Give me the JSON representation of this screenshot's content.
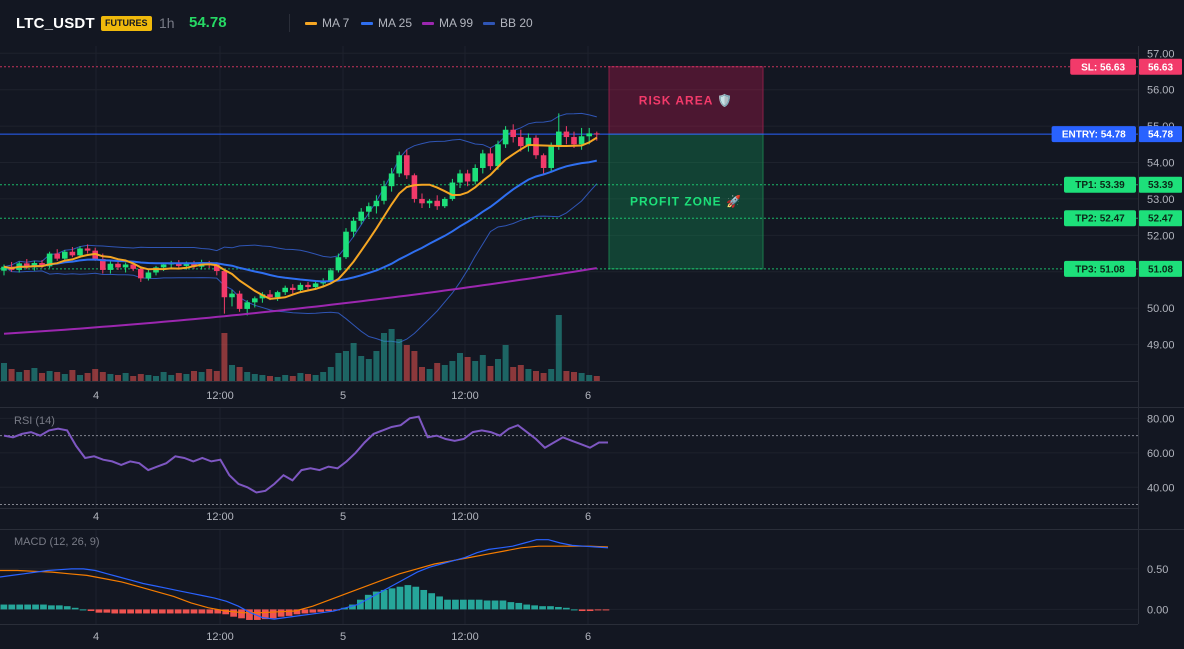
{
  "header": {
    "symbol": "LTC_USDT",
    "badge": "FUTURES",
    "timeframe": "1h",
    "last_price": "54.78"
  },
  "legend": [
    {
      "name": "MA 7",
      "color": "#f5a623"
    },
    {
      "name": "MA 25",
      "color": "#2f6ff0"
    },
    {
      "name": "MA 99",
      "color": "#9c27b0"
    },
    {
      "name": "BB 20",
      "color": "#2f55b5"
    }
  ],
  "zones": {
    "risk_label": "RISK AREA 🛡️",
    "profit_label": "PROFIT ZONE 🚀"
  },
  "levels": [
    {
      "key": "sl",
      "label": "SL: 56.63",
      "axis": "56.63",
      "value": 56.63,
      "color": "#f23a6a",
      "text_color": "#ffffff"
    },
    {
      "key": "entry",
      "label": "ENTRY: 54.78",
      "axis": "54.78",
      "value": 54.78,
      "color": "#2962ff",
      "text_color": "#ffffff"
    },
    {
      "key": "tp1",
      "label": "TP1: 53.39",
      "axis": "53.39",
      "value": 53.39,
      "color": "#1de07a",
      "text_color": "#0b2818"
    },
    {
      "key": "tp2",
      "label": "TP2: 52.47",
      "axis": "52.47",
      "value": 52.47,
      "color": "#1de07a",
      "text_color": "#0b2818"
    },
    {
      "key": "tp3",
      "label": "TP3: 51.08",
      "axis": "51.08",
      "value": 51.08,
      "color": "#1de07a",
      "text_color": "#0b2818"
    }
  ],
  "x_labels": [
    "4",
    "12:00",
    "5",
    "12:00",
    "6"
  ],
  "chart_data": [
    {
      "type": "candlestick",
      "title": "LTC_USDT 1h",
      "ylim": [
        48.0,
        57.2
      ],
      "yticks": [
        57.0,
        56.0,
        55.0,
        54.0,
        53.0,
        52.0,
        51.0,
        50.0,
        49.0
      ],
      "ytick_labels": [
        "57.00",
        "56.00",
        "55.00",
        "54.00",
        "53.00",
        "52.00",
        "51.00",
        "50.00",
        "49.00"
      ],
      "candles": [
        [
          51.03,
          51.2,
          50.9,
          51.14
        ],
        [
          51.14,
          51.27,
          51.0,
          51.05
        ],
        [
          51.05,
          51.28,
          50.98,
          51.23
        ],
        [
          51.23,
          51.35,
          51.07,
          51.12
        ],
        [
          51.12,
          51.3,
          51.03,
          51.24
        ],
        [
          51.24,
          51.32,
          51.1,
          51.15
        ],
        [
          51.15,
          51.55,
          51.1,
          51.5
        ],
        [
          51.5,
          51.62,
          51.3,
          51.36
        ],
        [
          51.36,
          51.6,
          51.28,
          51.55
        ],
        [
          51.55,
          51.68,
          51.4,
          51.45
        ],
        [
          51.45,
          51.7,
          51.38,
          51.64
        ],
        [
          51.64,
          51.75,
          51.5,
          51.58
        ],
        [
          51.58,
          51.66,
          51.3,
          51.35
        ],
        [
          51.35,
          51.5,
          50.95,
          51.05
        ],
        [
          51.05,
          51.3,
          50.95,
          51.22
        ],
        [
          51.22,
          51.33,
          51.05,
          51.12
        ],
        [
          51.12,
          51.25,
          50.98,
          51.2
        ],
        [
          51.2,
          51.28,
          51.02,
          51.08
        ],
        [
          51.08,
          51.12,
          50.72,
          50.82
        ],
        [
          50.82,
          51.05,
          50.76,
          50.98
        ],
        [
          50.98,
          51.16,
          50.9,
          51.12
        ],
        [
          51.12,
          51.25,
          51.02,
          51.2
        ],
        [
          51.2,
          51.3,
          51.1,
          51.24
        ],
        [
          51.24,
          51.32,
          51.1,
          51.16
        ],
        [
          51.16,
          51.28,
          51.06,
          51.25
        ],
        [
          51.25,
          51.3,
          51.08,
          51.14
        ],
        [
          51.14,
          51.33,
          51.06,
          51.26
        ],
        [
          51.26,
          51.3,
          51.1,
          51.2
        ],
        [
          51.2,
          51.26,
          50.9,
          51.02
        ],
        [
          51.02,
          51.05,
          49.85,
          50.3
        ],
        [
          50.3,
          50.5,
          50.05,
          50.4
        ],
        [
          50.4,
          50.48,
          49.9,
          49.98
        ],
        [
          49.98,
          50.22,
          49.8,
          50.16
        ],
        [
          50.16,
          50.32,
          50.02,
          50.27
        ],
        [
          50.27,
          50.44,
          50.15,
          50.38
        ],
        [
          50.38,
          50.5,
          50.22,
          50.3
        ],
        [
          50.3,
          50.48,
          50.2,
          50.44
        ],
        [
          50.44,
          50.62,
          50.36,
          50.56
        ],
        [
          50.56,
          50.66,
          50.4,
          50.5
        ],
        [
          50.5,
          50.7,
          50.42,
          50.64
        ],
        [
          50.64,
          50.72,
          50.5,
          50.58
        ],
        [
          50.58,
          50.74,
          50.5,
          50.68
        ],
        [
          50.68,
          50.82,
          50.6,
          50.76
        ],
        [
          50.76,
          51.1,
          50.7,
          51.04
        ],
        [
          51.04,
          51.5,
          50.98,
          51.4
        ],
        [
          51.4,
          52.2,
          51.35,
          52.1
        ],
        [
          52.1,
          52.5,
          51.95,
          52.4
        ],
        [
          52.4,
          52.75,
          52.3,
          52.65
        ],
        [
          52.65,
          52.9,
          52.5,
          52.8
        ],
        [
          52.8,
          53.1,
          52.6,
          52.95
        ],
        [
          52.95,
          53.5,
          52.85,
          53.35
        ],
        [
          53.35,
          53.85,
          53.2,
          53.7
        ],
        [
          53.7,
          54.3,
          53.6,
          54.2
        ],
        [
          54.2,
          54.35,
          53.55,
          53.65
        ],
        [
          53.65,
          53.7,
          52.9,
          53.0
        ],
        [
          53.0,
          53.15,
          52.75,
          52.88
        ],
        [
          52.88,
          53.0,
          52.75,
          52.95
        ],
        [
          52.95,
          53.1,
          52.7,
          52.8
        ],
        [
          52.8,
          53.05,
          52.75,
          53.0
        ],
        [
          53.0,
          53.55,
          52.95,
          53.45
        ],
        [
          53.45,
          53.8,
          53.3,
          53.7
        ],
        [
          53.7,
          53.8,
          53.35,
          53.48
        ],
        [
          53.48,
          53.95,
          53.4,
          53.85
        ],
        [
          53.85,
          54.35,
          53.7,
          54.25
        ],
        [
          54.25,
          54.4,
          53.8,
          53.9
        ],
        [
          53.9,
          54.6,
          53.8,
          54.5
        ],
        [
          54.5,
          55.0,
          54.4,
          54.9
        ],
        [
          54.9,
          55.05,
          54.55,
          54.7
        ],
        [
          54.7,
          54.9,
          54.3,
          54.45
        ],
        [
          54.45,
          54.8,
          54.3,
          54.68
        ],
        [
          54.68,
          54.75,
          54.1,
          54.2
        ],
        [
          54.2,
          54.25,
          53.65,
          53.85
        ],
        [
          53.85,
          54.55,
          53.75,
          54.45
        ],
        [
          54.45,
          55.35,
          54.35,
          54.85
        ],
        [
          54.85,
          55.0,
          54.5,
          54.7
        ],
        [
          54.7,
          54.85,
          54.4,
          54.5
        ],
        [
          54.5,
          54.95,
          54.35,
          54.72
        ],
        [
          54.72,
          54.95,
          54.5,
          54.8
        ],
        [
          54.8,
          54.85,
          54.6,
          54.78
        ]
      ],
      "volume": [
        18,
        12,
        9,
        11,
        13,
        8,
        10,
        9,
        7,
        11,
        6,
        8,
        12,
        9,
        7,
        6,
        8,
        5,
        7,
        6,
        5,
        9,
        6,
        8,
        7,
        10,
        9,
        12,
        10,
        48,
        16,
        14,
        9,
        7,
        6,
        5,
        4,
        6,
        5,
        8,
        7,
        6,
        9,
        14,
        28,
        30,
        38,
        25,
        22,
        30,
        48,
        52,
        42,
        36,
        30,
        14,
        12,
        18,
        16,
        20,
        28,
        24,
        20,
        26,
        15,
        22,
        36,
        14,
        16,
        12,
        10,
        8,
        12,
        66,
        10,
        9,
        8,
        6,
        5
      ],
      "overlays": [
        "MA 7",
        "MA 25",
        "MA 99",
        "BB 20"
      ]
    },
    {
      "type": "line",
      "title": "RSI (14)",
      "ylim": [
        28,
        86
      ],
      "yticks": [
        80.0,
        60.0,
        40.0
      ],
      "ytick_labels": [
        "80.00",
        "60.00",
        "40.00"
      ],
      "guides": [
        70,
        30
      ],
      "series": [
        {
          "values": [
            70,
            69,
            71,
            72,
            70,
            73,
            74,
            73,
            64,
            57,
            58,
            56,
            55,
            53,
            55,
            54,
            50,
            52,
            54,
            58,
            57,
            55,
            57,
            55,
            56,
            47,
            42,
            40,
            37,
            38,
            42,
            47,
            44,
            50,
            51,
            50,
            52,
            51,
            55,
            60,
            66,
            71,
            73,
            75,
            76,
            80,
            81,
            69,
            70,
            68,
            67,
            68,
            72,
            73,
            72,
            70,
            74,
            76,
            72,
            68,
            63,
            66,
            69,
            67,
            65,
            63,
            66,
            66
          ]
        }
      ]
    },
    {
      "type": "bar",
      "title": "MACD (12, 26, 9)",
      "ylim": [
        -0.18,
        0.98
      ],
      "yticks": [
        0.5,
        0.0
      ],
      "ytick_labels": [
        "0.50",
        "0.00"
      ],
      "histogram": [
        0.06,
        0.06,
        0.06,
        0.06,
        0.06,
        0.06,
        0.05,
        0.05,
        0.04,
        0.02,
        0.0,
        -0.02,
        -0.04,
        -0.04,
        -0.05,
        -0.05,
        -0.05,
        -0.05,
        -0.05,
        -0.05,
        -0.05,
        -0.05,
        -0.05,
        -0.05,
        -0.05,
        -0.05,
        -0.05,
        -0.05,
        -0.06,
        -0.09,
        -0.11,
        -0.13,
        -0.13,
        -0.12,
        -0.11,
        -0.09,
        -0.08,
        -0.06,
        -0.05,
        -0.04,
        -0.03,
        -0.02,
        -0.01,
        0.02,
        0.06,
        0.12,
        0.18,
        0.22,
        0.24,
        0.26,
        0.28,
        0.3,
        0.28,
        0.24,
        0.2,
        0.16,
        0.12,
        0.12,
        0.12,
        0.12,
        0.12,
        0.11,
        0.11,
        0.11,
        0.09,
        0.08,
        0.06,
        0.05,
        0.04,
        0.04,
        0.03,
        0.02,
        0.0,
        -0.02,
        -0.02,
        -0.01,
        -0.01
      ],
      "series": [
        {
          "values": [
            0.4,
            0.42,
            0.44,
            0.46,
            0.48,
            0.49,
            0.5,
            0.5,
            0.48,
            0.44,
            0.4,
            0.36,
            0.32,
            0.29,
            0.26,
            0.23,
            0.2,
            0.17,
            0.14,
            0.1,
            0.04,
            -0.04,
            -0.1,
            -0.12,
            -0.1,
            -0.08,
            -0.06,
            -0.04,
            -0.02,
            0.02,
            0.06,
            0.14,
            0.22,
            0.3,
            0.38,
            0.46,
            0.52,
            0.56,
            0.6,
            0.64,
            0.7,
            0.74,
            0.76,
            0.78,
            0.82,
            0.86,
            0.86,
            0.82,
            0.79,
            0.78,
            0.77,
            0.76
          ]
        },
        {
          "values": [
            0.48,
            0.48,
            0.47,
            0.46,
            0.44,
            0.42,
            0.38,
            0.34,
            0.28,
            0.22,
            0.16,
            0.08,
            0.02,
            -0.02,
            -0.04,
            -0.04,
            -0.03,
            -0.02,
            0.04,
            0.12,
            0.2,
            0.28,
            0.36,
            0.44,
            0.5,
            0.56,
            0.6,
            0.64,
            0.68,
            0.72,
            0.76,
            0.78,
            0.78,
            0.78,
            0.78,
            0.77
          ]
        }
      ]
    }
  ]
}
